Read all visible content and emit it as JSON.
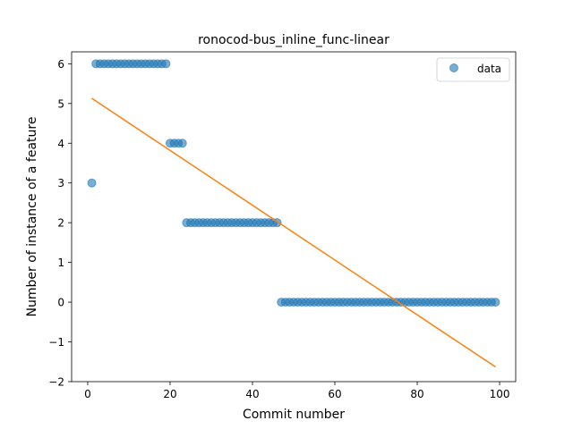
{
  "chart_data": {
    "type": "scatter",
    "title": "ronocod-bus_inline_func-linear",
    "xlabel": "Commit number",
    "ylabel": "Number of instance of a feature",
    "xlim": [
      -3.9,
      103.9
    ],
    "ylim": [
      -2,
      6.3
    ],
    "xticks": [
      0,
      20,
      40,
      60,
      80,
      100
    ],
    "yticks": [
      -2,
      -1,
      0,
      1,
      2,
      3,
      4,
      5,
      6
    ],
    "legend": {
      "position": "top-right",
      "entries": [
        "data"
      ]
    },
    "series": [
      {
        "name": "data",
        "kind": "scatter",
        "color": "#1f77b4",
        "x": [
          1,
          2,
          3,
          4,
          5,
          6,
          7,
          8,
          9,
          10,
          11,
          12,
          13,
          14,
          15,
          16,
          17,
          18,
          19,
          20,
          21,
          22,
          23,
          24,
          25,
          26,
          27,
          28,
          29,
          30,
          31,
          32,
          33,
          34,
          35,
          36,
          37,
          38,
          39,
          40,
          41,
          42,
          43,
          44,
          45,
          46,
          47,
          48,
          49,
          50,
          51,
          52,
          53,
          54,
          55,
          56,
          57,
          58,
          59,
          60,
          61,
          62,
          63,
          64,
          65,
          66,
          67,
          68,
          69,
          70,
          71,
          72,
          73,
          74,
          75,
          76,
          77,
          78,
          79,
          80,
          81,
          82,
          83,
          84,
          85,
          86,
          87,
          88,
          89,
          90,
          91,
          92,
          93,
          94,
          95,
          96,
          97,
          98,
          99
        ],
        "y": [
          3,
          6,
          6,
          6,
          6,
          6,
          6,
          6,
          6,
          6,
          6,
          6,
          6,
          6,
          6,
          6,
          6,
          6,
          6,
          4,
          4,
          4,
          4,
          2,
          2,
          2,
          2,
          2,
          2,
          2,
          2,
          2,
          2,
          2,
          2,
          2,
          2,
          2,
          2,
          2,
          2,
          2,
          2,
          2,
          2,
          2,
          0,
          0,
          0,
          0,
          0,
          0,
          0,
          0,
          0,
          0,
          0,
          0,
          0,
          0,
          0,
          0,
          0,
          0,
          0,
          0,
          0,
          0,
          0,
          0,
          0,
          0,
          0,
          0,
          0,
          0,
          0,
          0,
          0,
          0,
          0,
          0,
          0,
          0,
          0,
          0,
          0,
          0,
          0,
          0,
          0,
          0,
          0,
          0,
          0,
          0,
          0,
          0,
          0
        ]
      },
      {
        "kind": "line",
        "color": "#ff7f0e",
        "x": [
          1,
          99
        ],
        "y": [
          5.13,
          -1.63
        ]
      }
    ]
  }
}
